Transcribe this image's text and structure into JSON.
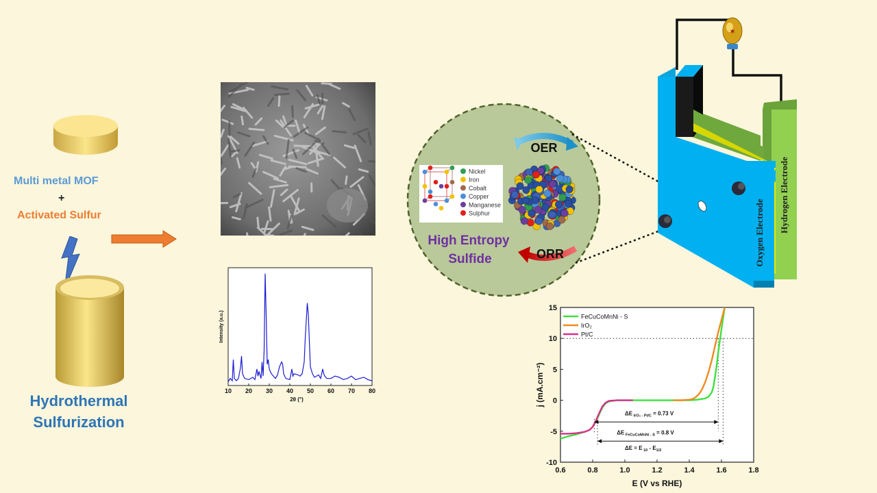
{
  "left": {
    "mof_label": "Multi metal MOF",
    "plus": "+",
    "sulfur_label": "Activated Sulfur",
    "method_line1": "Hydrothermal",
    "method_line2": "Sulfurization"
  },
  "circle": {
    "title_line1": "High Entropy",
    "title_line2": "Sulfide",
    "oer": "OER",
    "orr": "ORR",
    "elements": [
      {
        "name": "Nickel",
        "color": "#2e9e4f"
      },
      {
        "name": "Iron",
        "color": "#f2c200"
      },
      {
        "name": "Cobalt",
        "color": "#a06a4a"
      },
      {
        "name": "Copper",
        "color": "#4a90d9"
      },
      {
        "name": "Manganese",
        "color": "#6b3fa0"
      },
      {
        "name": "Sulphur",
        "color": "#e0201a"
      }
    ]
  },
  "battery": {
    "oxygen_electrode": "Oxygen Electrode",
    "hydrogen_electrode": "Hydrogen Electrode"
  },
  "xrd_chart": {
    "type": "line",
    "xlabel": "2θ (°)",
    "ylabel": "Intensity (a.u.)",
    "xticks": [
      10,
      20,
      30,
      40,
      50,
      60,
      70,
      80
    ],
    "xlim": [
      10,
      80
    ],
    "color": "#1a1ad0",
    "x": [
      10,
      11,
      12,
      12.5,
      13,
      14,
      15,
      16,
      16.5,
      17,
      18,
      20,
      22,
      23,
      24,
      24.5,
      25,
      26,
      26.5,
      27,
      27.5,
      28,
      28.5,
      29,
      29.5,
      30,
      31,
      32,
      33,
      34,
      35,
      36,
      36.5,
      37,
      38,
      40,
      41,
      41.5,
      42,
      44,
      45,
      46,
      47,
      47.5,
      48,
      48.5,
      49,
      49.5,
      50,
      51,
      52,
      53,
      54,
      55,
      56,
      56.5,
      57,
      58,
      60,
      62,
      64,
      66,
      68,
      70,
      72,
      74,
      76,
      78,
      80
    ],
    "y": [
      3,
      6,
      4,
      22,
      6,
      4,
      6,
      15,
      25,
      10,
      6,
      5,
      7,
      5,
      14,
      8,
      12,
      6,
      20,
      8,
      30,
      95,
      60,
      18,
      22,
      14,
      10,
      8,
      6,
      9,
      16,
      20,
      18,
      10,
      6,
      5,
      14,
      8,
      10,
      9,
      8,
      10,
      20,
      40,
      55,
      70,
      60,
      38,
      16,
      10,
      7,
      8,
      9,
      6,
      14,
      10,
      8,
      6,
      6,
      8,
      7,
      5,
      6,
      8,
      5,
      6,
      7,
      5,
      4
    ]
  },
  "chart_data": {
    "type": "line",
    "xlabel": "E (V vs RHE)",
    "ylabel": "j (mA.cm⁻²)",
    "xlim": [
      0.6,
      1.8
    ],
    "ylim": [
      -10,
      15
    ],
    "xticks": [
      "0.6",
      "0.8",
      "1.0",
      "1.2",
      "1.4",
      "1.6",
      "1.8"
    ],
    "yticks": [
      "-10",
      "-5",
      "0",
      "5",
      "10",
      "15"
    ],
    "series": [
      {
        "name": "FeCuCoMnNi - S",
        "color": "#3ee03e",
        "x": [
          0.6,
          0.65,
          0.7,
          0.75,
          0.78,
          0.8,
          0.82,
          0.84,
          0.86,
          0.88,
          0.9,
          0.95,
          1.0,
          1.1,
          1.2,
          1.3,
          1.4,
          1.45,
          1.5,
          1.52,
          1.54,
          1.55,
          1.56,
          1.57,
          1.58,
          1.6,
          1.62
        ],
        "y": [
          -6.2,
          -5.8,
          -5.5,
          -5.1,
          -4.8,
          -4.3,
          -3.5,
          -2.3,
          -1.2,
          -0.5,
          -0.2,
          0,
          0,
          0,
          0,
          0,
          0,
          0.1,
          0.3,
          0.6,
          1.3,
          2.2,
          3.8,
          5.6,
          7.8,
          11.5,
          15
        ]
      },
      {
        "name": "IrO₂",
        "color": "#f08a20",
        "x": [
          1.3,
          1.35,
          1.4,
          1.42,
          1.44,
          1.46,
          1.48,
          1.5,
          1.52,
          1.54,
          1.56,
          1.58,
          1.6,
          1.62
        ],
        "y": [
          0,
          0,
          0.1,
          0.2,
          0.5,
          1.0,
          1.8,
          3.0,
          4.6,
          6.5,
          8.8,
          11.0,
          13.0,
          15
        ]
      },
      {
        "name": "Pt/C",
        "color": "#d8308a",
        "x": [
          0.6,
          0.65,
          0.7,
          0.75,
          0.78,
          0.8,
          0.82,
          0.84,
          0.86,
          0.88,
          0.9,
          0.95,
          1.0,
          1.05
        ],
        "y": [
          -5.4,
          -5.4,
          -5.3,
          -5.1,
          -4.8,
          -4.3,
          -3.3,
          -2.1,
          -1.0,
          -0.4,
          -0.1,
          0,
          0,
          0
        ]
      }
    ],
    "annotations": [
      {
        "text_main": "ΔE",
        "sub": "IrO₂ - Pt/C",
        "rest": " = 0.73 V"
      },
      {
        "text_main": "ΔE",
        "sub": "FeCuCoMnNi - S",
        "rest": " =  0.8 V"
      },
      {
        "text_main": "ΔE = E",
        "sub": "10",
        "rest": " - E",
        "sub2": "1/2"
      }
    ]
  }
}
